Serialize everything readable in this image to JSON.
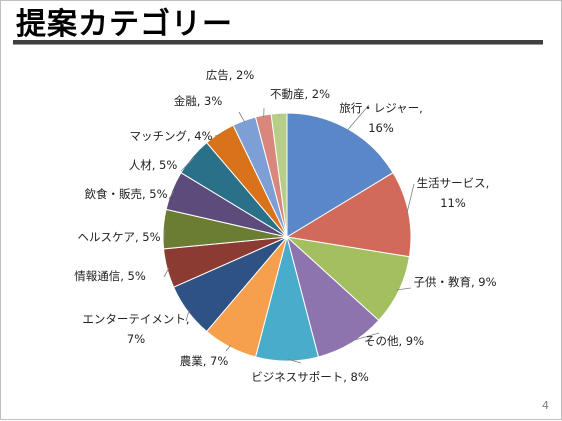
{
  "slide": {
    "title": "提案カテゴリー",
    "page_number": "4"
  },
  "chart_data": {
    "type": "pie",
    "title": "",
    "start": "12 o'clock",
    "direction": "clockwise",
    "categories": [
      "旅行・レジャー",
      "生活サービス",
      "子供・教育",
      "その他",
      "ビジネスサポート",
      "農業",
      "エンターテイメント",
      "情報通信",
      "ヘルスケア",
      "飲食・販売",
      "人材",
      "マッチング",
      "金融",
      "広告",
      "不動産"
    ],
    "values": [
      16,
      11,
      9,
      9,
      8,
      7,
      7,
      5,
      5,
      5,
      5,
      4,
      3,
      2,
      2
    ],
    "unit": "%",
    "labels": [
      [
        "旅行・レジャー,",
        "16%"
      ],
      [
        "生活サービス,",
        "11%"
      ],
      [
        "子供・教育, 9%"
      ],
      [
        "その他, 9%"
      ],
      [
        "ビジネスサポート, 8%"
      ],
      [
        "農業, 7%"
      ],
      [
        "エンターテイメント,",
        "7%"
      ],
      [
        "情報通信, 5%"
      ],
      [
        "ヘルスケア, 5%"
      ],
      [
        "飲食・販売, 5%"
      ],
      [
        "人材, 5%"
      ],
      [
        "マッチング, 4%"
      ],
      [
        "金融, 3%"
      ],
      [
        "広告, 2%"
      ],
      [
        "不動産, 2%"
      ]
    ],
    "colors": [
      "#5a87c7",
      "#d26a5b",
      "#a3bf60",
      "#8d74af",
      "#4aaccb",
      "#f6a04e",
      "#2e5284",
      "#8c3b32",
      "#6b7d33",
      "#5d4b7c",
      "#2a7089",
      "#d8731c",
      "#7d9fd6",
      "#d9877c",
      "#b6ce87"
    ]
  }
}
